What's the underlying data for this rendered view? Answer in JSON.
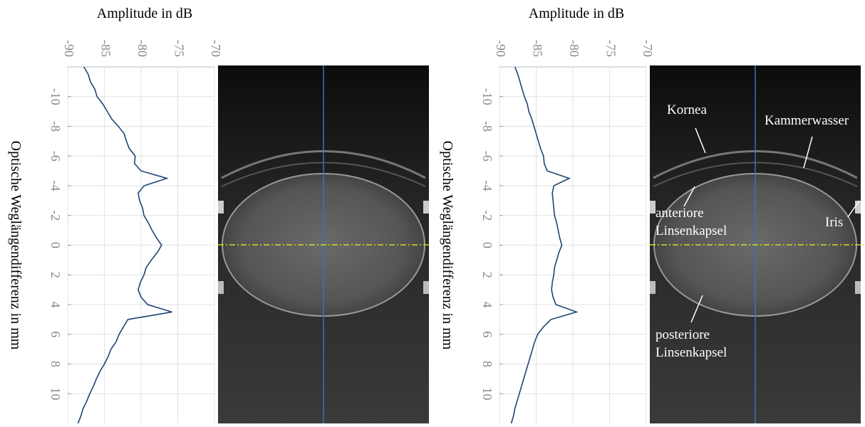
{
  "chart_data": [
    {
      "type": "line",
      "orientation": "horizontal",
      "x_label": "Amplitude in dB",
      "y_label": "Optische Weglängendifferenz in mm",
      "xlim": [
        -90,
        -70
      ],
      "xticks": [
        -90,
        -85,
        -80,
        -75,
        -70
      ],
      "ylim": [
        -12,
        12
      ],
      "yticks": [
        -10,
        -8,
        -6,
        -4,
        -2,
        0,
        2,
        4,
        6,
        8,
        10
      ],
      "grid": true,
      "x": [
        -12,
        -11.5,
        -11,
        -10.5,
        -10,
        -9.5,
        -9,
        -8.5,
        -8,
        -7.5,
        -7,
        -6.5,
        -6,
        -5.5,
        -5,
        -4.5,
        -4,
        -3.5,
        -3,
        -2.5,
        -2,
        -1.5,
        -1,
        -0.5,
        0,
        0.5,
        1,
        1.5,
        2,
        2.5,
        3,
        3.5,
        4,
        4.5,
        5,
        5.5,
        6,
        6.5,
        7,
        7.5,
        8,
        8.5,
        9,
        9.5,
        10,
        10.5,
        11,
        11.5,
        12
      ],
      "series": [
        {
          "color": "#1f4477",
          "values": [
            -87.8,
            -87.2,
            -86.9,
            -86.3,
            -86.0,
            -85.2,
            -84.6,
            -84.0,
            -83.1,
            -82.3,
            -82.0,
            -81.6,
            -80.8,
            -80.9,
            -80.0,
            -76.5,
            -79.6,
            -80.4,
            -80.2,
            -79.8,
            -79.6,
            -79.0,
            -78.5,
            -77.9,
            -77.2,
            -77.8,
            -78.6,
            -79.3,
            -79.6,
            -80.1,
            -80.4,
            -80.0,
            -79.1,
            -75.8,
            -81.8,
            -82.4,
            -83.0,
            -83.4,
            -84.1,
            -84.5,
            -85.0,
            -85.6,
            -86.1,
            -86.5,
            -87.0,
            -87.4,
            -87.9,
            -88.2,
            -88.6
          ]
        }
      ]
    },
    {
      "type": "line",
      "orientation": "horizontal",
      "x_label": "Amplitude in dB",
      "y_label": "Optische Weglängendifferenz in mm",
      "xlim": [
        -90,
        -70
      ],
      "xticks": [
        -90,
        -85,
        -80,
        -75,
        -70
      ],
      "ylim": [
        -12,
        12
      ],
      "yticks": [
        -10,
        -8,
        -6,
        -4,
        -2,
        0,
        2,
        4,
        6,
        8,
        10
      ],
      "grid": true,
      "x": [
        -12,
        -11.5,
        -11,
        -10.5,
        -10,
        -9.5,
        -9,
        -8.5,
        -8,
        -7.5,
        -7,
        -6.5,
        -6,
        -5.5,
        -5,
        -4.5,
        -4,
        -3.5,
        -3,
        -2.5,
        -2,
        -1.5,
        -1,
        -0.5,
        0,
        0.5,
        1,
        1.5,
        2,
        2.5,
        3,
        3.5,
        4,
        4.5,
        5,
        5.5,
        6,
        6.5,
        7,
        7.5,
        8,
        8.5,
        9,
        9.5,
        10,
        10.5,
        11,
        11.5,
        12
      ],
      "series": [
        {
          "color": "#1f4477",
          "values": [
            -87.9,
            -87.5,
            -87.2,
            -86.9,
            -86.6,
            -86.2,
            -86.0,
            -85.6,
            -85.3,
            -85.0,
            -84.7,
            -84.4,
            -84.0,
            -83.9,
            -83.5,
            -80.5,
            -82.6,
            -82.8,
            -82.7,
            -82.6,
            -82.5,
            -82.2,
            -82.0,
            -81.8,
            -81.5,
            -81.9,
            -82.2,
            -82.5,
            -82.6,
            -82.8,
            -82.9,
            -82.7,
            -82.3,
            -79.5,
            -83.0,
            -84.0,
            -84.8,
            -85.2,
            -85.5,
            -85.8,
            -86.1,
            -86.4,
            -86.7,
            -87.0,
            -87.3,
            -87.6,
            -87.9,
            -88.1,
            -88.4
          ]
        }
      ],
      "annotations": [
        {
          "lines": [
            "Kornea"
          ]
        },
        {
          "lines": [
            "Kammerwasser"
          ]
        },
        {
          "lines": [
            "anteriore",
            "Linsenkapsel"
          ]
        },
        {
          "lines": [
            "Iris"
          ]
        },
        {
          "lines": [
            "posteriore",
            "Linsenkapsel"
          ]
        }
      ]
    }
  ]
}
